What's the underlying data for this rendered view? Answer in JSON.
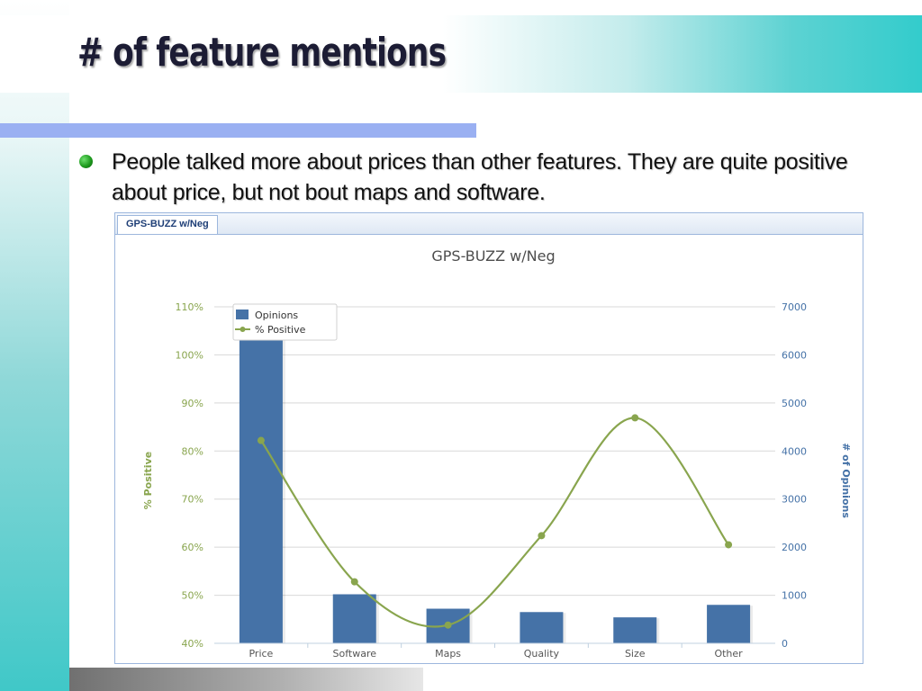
{
  "slide": {
    "title": "# of feature mentions",
    "bullet": "People talked more about prices than other features. They are quite positive about price, but not bout maps and software."
  },
  "panel": {
    "tab_label": "GPS-BUZZ w/Neg"
  },
  "chart_data": {
    "type": "bar",
    "title": "GPS-BUZZ w/Neg",
    "categories": [
      "Price",
      "Software",
      "Maps",
      "Quality",
      "Size",
      "Other"
    ],
    "series": [
      {
        "name": "Opinions",
        "type": "bar",
        "axis": "right",
        "values": [
          7000,
          1020,
          720,
          650,
          540,
          800
        ]
      },
      {
        "name": "% Positive",
        "type": "line",
        "axis": "left",
        "values": [
          0.822,
          0.528,
          0.438,
          0.624,
          0.869,
          0.605
        ]
      }
    ],
    "ylabel": "% Positive",
    "y2label": "# of Opinions",
    "ylim": [
      0.4,
      1.1
    ],
    "y2lim": [
      0,
      7000
    ],
    "yticks": [
      "40%",
      "50%",
      "60%",
      "70%",
      "80%",
      "90%",
      "100%",
      "110%"
    ],
    "y2ticks": [
      "0",
      "1000",
      "2000",
      "3000",
      "4000",
      "5000",
      "6000",
      "7000"
    ],
    "legend": "top-left",
    "grid": true,
    "colors": {
      "bar": "#4572a7",
      "line": "#89a54e",
      "grid": "#d8d8d8",
      "title": "#4d4d4d",
      "y2": "#4572a7"
    }
  }
}
